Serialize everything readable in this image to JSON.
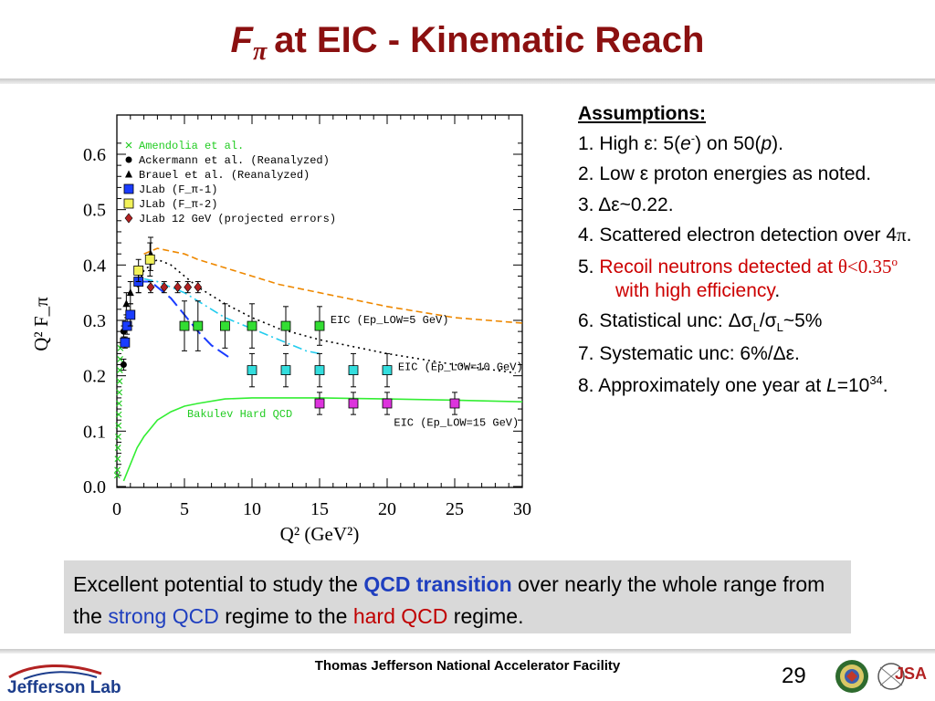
{
  "header": {
    "title_symbol": "F",
    "title_sub": "π",
    "title_rest": "at EIC - Kinematic Reach"
  },
  "chart_data": {
    "type": "scatter",
    "title": "",
    "xlabel": "Q² (GeV²)",
    "ylabel": "Q² F_π",
    "xlim": [
      0,
      30
    ],
    "ylim": [
      0,
      0.65
    ],
    "xticks": [
      0,
      5,
      10,
      15,
      20,
      25,
      30
    ],
    "yticks": [
      0.0,
      0.1,
      0.2,
      0.3,
      0.4,
      0.5,
      0.6
    ],
    "xtick_labels": [
      "0",
      "5",
      "10",
      "15",
      "20",
      "25",
      "30"
    ],
    "ytick_labels": [
      "0.0",
      "0.1",
      "0.2",
      "0.3",
      "0.4",
      "0.5",
      "0.6"
    ],
    "legend": {
      "placement": "top-left",
      "entries": [
        {
          "label": "Amendolia et al.",
          "color": "#22cc22",
          "marker": "x"
        },
        {
          "label": "Ackermann et al. (Reanalyzed)",
          "color": "#000000",
          "marker": "circle"
        },
        {
          "label": "Brauel et al. (Reanalyzed)",
          "color": "#000000",
          "marker": "triangle"
        },
        {
          "label": "JLab (F_π-1)",
          "color": "#1a3cff",
          "marker": "square"
        },
        {
          "label": "JLab (F_π-2)",
          "color": "#f2f25a",
          "marker": "square"
        },
        {
          "label": "JLab 12 GeV (projected errors)",
          "color": "#b22222",
          "marker": "diamond"
        }
      ]
    },
    "series": [
      {
        "name": "Amendolia et al.",
        "color": "#22cc22",
        "marker": "x",
        "x": [
          0.02,
          0.04,
          0.06,
          0.08,
          0.1,
          0.12,
          0.14,
          0.16,
          0.18,
          0.2,
          0.22,
          0.24,
          0.26
        ],
        "y": [
          0.02,
          0.03,
          0.05,
          0.07,
          0.09,
          0.11,
          0.13,
          0.15,
          0.17,
          0.19,
          0.21,
          0.23,
          0.25
        ]
      },
      {
        "name": "Ackermann et al. (Reanalyzed)",
        "color": "#000000",
        "marker": "circle",
        "x": [
          0.5,
          0.5
        ],
        "y": [
          0.22,
          0.28
        ],
        "err": [
          0.01,
          0.01
        ]
      },
      {
        "name": "Brauel et al. (Reanalyzed)",
        "color": "#000000",
        "marker": "triangle",
        "x": [
          0.7,
          1.0,
          1.6,
          2.5
        ],
        "y": [
          0.33,
          0.35,
          0.37,
          0.42
        ],
        "err": [
          0.02,
          0.02,
          0.02,
          0.03
        ]
      },
      {
        "name": "JLab (F_π-1)",
        "color": "#1a3cff",
        "marker": "square",
        "x": [
          0.6,
          0.75,
          1.0,
          1.6
        ],
        "y": [
          0.26,
          0.29,
          0.31,
          0.37
        ],
        "err": [
          0.01,
          0.015,
          0.02,
          0.02
        ]
      },
      {
        "name": "JLab (F_π-2)",
        "color": "#f2f25a",
        "marker": "square",
        "x": [
          1.6,
          2.45
        ],
        "y": [
          0.39,
          0.41
        ],
        "err": [
          0.02,
          0.03
        ]
      },
      {
        "name": "JLab 12 GeV (projected errors)",
        "color": "#b22222",
        "marker": "diamond",
        "x": [
          2.5,
          3.5,
          4.5,
          5.25,
          6.0
        ],
        "y": [
          0.36,
          0.36,
          0.36,
          0.36,
          0.36
        ],
        "err": [
          0.01,
          0.01,
          0.01,
          0.01,
          0.01
        ]
      },
      {
        "name": "EIC (Ep_LOW=5 GeV)",
        "color": "#33dd33",
        "marker": "square",
        "x": [
          5,
          6,
          8,
          10,
          12.5,
          15
        ],
        "y": [
          0.29,
          0.29,
          0.29,
          0.29,
          0.29,
          0.29
        ],
        "err": [
          0.045,
          0.045,
          0.04,
          0.04,
          0.035,
          0.035
        ]
      },
      {
        "name": "EIC (Ep_LOW=10 GeV)",
        "color": "#33dddd",
        "marker": "square",
        "x": [
          10,
          12.5,
          15,
          17.5,
          20
        ],
        "y": [
          0.21,
          0.21,
          0.21,
          0.21,
          0.21
        ],
        "err": [
          0.03,
          0.03,
          0.03,
          0.03,
          0.03
        ]
      },
      {
        "name": "EIC (Ep_LOW=15 GeV)",
        "color": "#dd33dd",
        "marker": "square",
        "x": [
          15,
          17.5,
          20,
          25
        ],
        "y": [
          0.15,
          0.15,
          0.15,
          0.15
        ],
        "err": [
          0.02,
          0.02,
          0.02,
          0.02
        ]
      }
    ],
    "curves": [
      {
        "name": "Bakulev Hard QCD",
        "color": "#33ee33",
        "style": "solid",
        "x": [
          0.5,
          1,
          1.5,
          2,
          3,
          4,
          5,
          6,
          8,
          10,
          12,
          15,
          20,
          25,
          30
        ],
        "y": [
          0.01,
          0.04,
          0.07,
          0.09,
          0.12,
          0.135,
          0.145,
          0.15,
          0.158,
          0.16,
          0.16,
          0.16,
          0.158,
          0.156,
          0.153
        ]
      },
      {
        "name": "",
        "color": "#ee8800",
        "style": "dashed",
        "x": [
          2,
          3,
          4,
          5,
          6,
          8,
          10,
          12,
          15,
          20,
          25,
          30
        ],
        "y": [
          0.42,
          0.43,
          0.425,
          0.42,
          0.41,
          0.395,
          0.38,
          0.365,
          0.35,
          0.325,
          0.305,
          0.295
        ]
      },
      {
        "name": "",
        "color": "#000000",
        "style": "dotted",
        "x": [
          1.5,
          2,
          3,
          4,
          5,
          6,
          8,
          10,
          12,
          15,
          20,
          25,
          29.5
        ],
        "y": [
          0.36,
          0.39,
          0.41,
          0.4,
          0.38,
          0.36,
          0.33,
          0.305,
          0.285,
          0.265,
          0.24,
          0.22,
          0.205
        ]
      },
      {
        "name": "",
        "color": "#22ccee",
        "style": "dashdot",
        "x": [
          2,
          3,
          4,
          5,
          6,
          8,
          10,
          12,
          14,
          15
        ],
        "y": [
          0.375,
          0.37,
          0.36,
          0.35,
          0.335,
          0.305,
          0.285,
          0.265,
          0.245,
          0.24
        ]
      },
      {
        "name": "",
        "color": "#1a3cff",
        "style": "longdash",
        "x": [
          1.5,
          2,
          2.5,
          3,
          4,
          5,
          6,
          7,
          8.5
        ],
        "y": [
          0.37,
          0.37,
          0.37,
          0.36,
          0.34,
          0.31,
          0.28,
          0.255,
          0.23
        ]
      }
    ],
    "annotations": [
      {
        "text": "Bakulev Hard QCD",
        "x": 5.2,
        "y": 0.125,
        "color": "#22cc22"
      },
      {
        "text": "EIC (Ep_LOW=5 GeV)",
        "x": 15.8,
        "y": 0.295,
        "color": "#000000"
      },
      {
        "text": "EIC (Ep_LOW=10 GeV)",
        "x": 20.8,
        "y": 0.21,
        "color": "#000000"
      },
      {
        "text": "EIC (Ep_LOW=15 GeV)",
        "x": 20.5,
        "y": 0.11,
        "color": "#000000"
      }
    ]
  },
  "assumptions": {
    "heading": "Assumptions:",
    "i1": {
      "a": "1. High ε: 5(",
      "b": "e",
      "c": "-",
      "d": ") on 50(",
      "e": "p",
      "f": ")."
    },
    "i2": "2. Low ε proton energies as noted.",
    "i3": "3. Δε~0.22.",
    "i4": {
      "a": "4. Scattered electron detection over 4",
      "b": "π",
      "c": "."
    },
    "i5": {
      "a": "5. ",
      "b": "Recoil neutrons detected at ",
      "c": "θ<0.35",
      "d": "o",
      "e": " with high efficiency",
      "f": "."
    },
    "i6": {
      "a": "6. Statistical unc: Δσ",
      "b": "L",
      "c": "/σ",
      "d": "L",
      "e": "~5%"
    },
    "i7": "7. Systematic unc: 6%/Δε.",
    "i8": {
      "a": "8. Approximately one year at ",
      "b": "L",
      "c": "=10",
      "d": "34",
      "e": "."
    }
  },
  "callout": {
    "a": "Excellent potential to study the ",
    "b": "QCD transition",
    "c": " over nearly the whole range from the ",
    "d": "strong QCD",
    "e": " regime to the ",
    "f": "hard QCD",
    "g": " regime."
  },
  "footer": {
    "logo_text": "Jefferson Lab",
    "org": "Thomas Jefferson National Accelerator Facility",
    "page": "29",
    "jsa_text": "JSA"
  },
  "colors": {
    "title": "#8b1010",
    "callout_bg": "#d9d9d9",
    "qcd_blue": "#1f3fbf",
    "hard_red": "#c00000"
  }
}
